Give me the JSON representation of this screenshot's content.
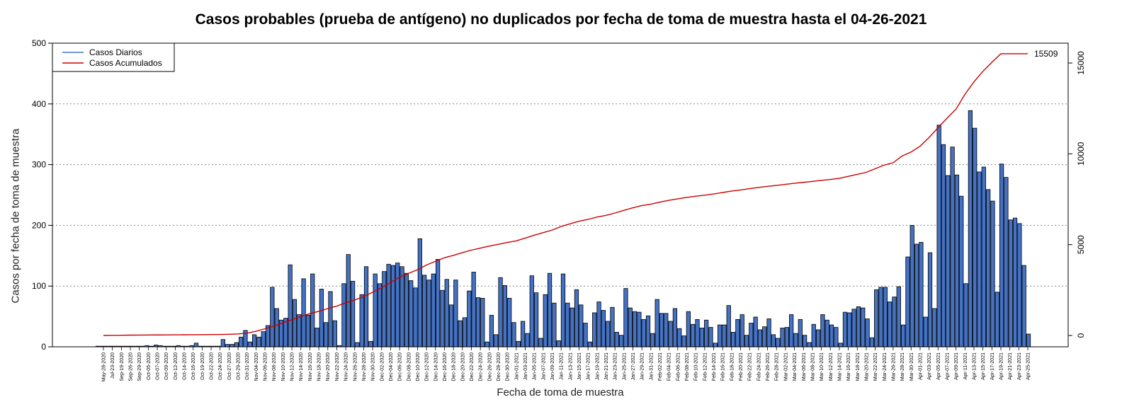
{
  "chart_data": {
    "type": "bar",
    "title": "Casos probables (prueba de antígeno) no duplicados por fecha de toma de muestra hasta el 04-26-2021",
    "xlabel": "Fecha de toma de muestra",
    "ylabel": "Casos por fecha de toma de muestra",
    "ylim": [
      0,
      500
    ],
    "y2lim": [
      0,
      16000
    ],
    "y_ticks": [
      0,
      100,
      200,
      300,
      400,
      500
    ],
    "y2_ticks": [
      0,
      5000,
      10000,
      15000
    ],
    "grid": "horizontal dotted",
    "legend_position": "top-left",
    "bar_color": "#4472c4",
    "line_color": "#cc0000",
    "cumulative_end_label": "15509",
    "x_tick_labels": [
      "May-28-2020",
      "Jul-23-2020",
      "Sep-19-2020",
      "Sep-26-2020",
      "Sep-29-2020",
      "Oct-05-2020",
      "Oct-07-2020",
      "Oct-09-2020",
      "Oct-12-2020",
      "Oct-14-2020",
      "Oct-16-2020",
      "Oct-19-2020",
      "Oct-22-2020",
      "Oct-24-2020",
      "Oct-27-2020",
      "Oct-29-2020",
      "Oct-31-2020",
      "Nov-04-2020",
      "Nov-06-2020",
      "Nov-08-2020",
      "Nov-10-2020",
      "Nov-12-2020",
      "Nov-14-2020",
      "Nov-16-2020",
      "Nov-18-2020",
      "Nov-20-2020",
      "Nov-22-2020",
      "Nov-24-2020",
      "Nov-26-2020",
      "Nov-28-2020",
      "Nov-30-2020",
      "Dec-02-2020",
      "Dec-04-2020",
      "Dec-06-2020",
      "Dec-08-2020",
      "Dec-10-2020",
      "Dec-12-2020",
      "Dec-14-2020",
      "Dec-16-2020",
      "Dec-18-2020",
      "Dec-20-2020",
      "Dec-22-2020",
      "Dec-24-2020",
      "Dec-26-2020",
      "Dec-28-2020",
      "Dec-30-2020",
      "Jan-01-2021",
      "Jan-03-2021",
      "Jan-05-2021",
      "Jan-07-2021",
      "Jan-09-2021",
      "Jan-11-2021",
      "Jan-13-2021",
      "Jan-15-2021",
      "Jan-17-2021",
      "Jan-19-2021",
      "Jan-21-2021",
      "Jan-23-2021",
      "Jan-25-2021",
      "Jan-27-2021",
      "Jan-29-2021",
      "Jan-31-2021",
      "Feb-02-2021",
      "Feb-04-2021",
      "Feb-06-2021",
      "Feb-08-2021",
      "Feb-10-2021",
      "Feb-12-2021",
      "Feb-14-2021",
      "Feb-16-2021",
      "Feb-18-2021",
      "Feb-20-2021",
      "Feb-22-2021",
      "Feb-24-2021",
      "Feb-26-2021",
      "Feb-28-2021",
      "Mar-02-2021",
      "Mar-04-2021",
      "Mar-06-2021",
      "Mar-08-2021",
      "Mar-10-2021",
      "Mar-12-2021",
      "Mar-14-2021",
      "Mar-16-2021",
      "Mar-18-2021",
      "Mar-20-2021",
      "Mar-22-2021",
      "Mar-24-2021",
      "Mar-26-2021",
      "Mar-28-2021",
      "Mar-30-2021",
      "Apr-01-2021",
      "Apr-03-2021",
      "Apr-05-2021",
      "Apr-07-2021",
      "Apr-09-2021",
      "Apr-11-2021",
      "Apr-13-2021",
      "Apr-15-2021",
      "Apr-17-2021",
      "Apr-19-2021",
      "Apr-21-2021",
      "Apr-23-2021",
      "Apr-25-2021"
    ],
    "series": [
      {
        "name": "Casos Diarios",
        "values": [
          1,
          1,
          1,
          1,
          1,
          1,
          1,
          1,
          1,
          1,
          1,
          2,
          1,
          3,
          2,
          1,
          1,
          1,
          2,
          1,
          1,
          2,
          6,
          1,
          1,
          1,
          1,
          1,
          12,
          4,
          4,
          7,
          16,
          27,
          8,
          20,
          16,
          25,
          35,
          98,
          63,
          44,
          47,
          135,
          78,
          53,
          112,
          52,
          120,
          31,
          95,
          40,
          91,
          43,
          2,
          104,
          152,
          108,
          7,
          86,
          132,
          9,
          120,
          104,
          124,
          136,
          134,
          138,
          132,
          121,
          109,
          97,
          178,
          118,
          110,
          120,
          144,
          93,
          111,
          69,
          110,
          43,
          48,
          92,
          123,
          81,
          80,
          8,
          52,
          20,
          114,
          101,
          80,
          40,
          9,
          42,
          22,
          117,
          89,
          14,
          86,
          121,
          72,
          10,
          120,
          72,
          64,
          94,
          69,
          39,
          8,
          56,
          74,
          60,
          42,
          65,
          24,
          19,
          96,
          64,
          58,
          57,
          45,
          51,
          22,
          78,
          55,
          55,
          42,
          63,
          30,
          18,
          58,
          37,
          45,
          31,
          44,
          32,
          6,
          36,
          36,
          68,
          24,
          45,
          53,
          19,
          39,
          49,
          28,
          33,
          46,
          20,
          14,
          31,
          32,
          53,
          22,
          45,
          19,
          7,
          37,
          28,
          53,
          44,
          36,
          32,
          6,
          57,
          56,
          62,
          66,
          64,
          46,
          15,
          94,
          98,
          98,
          74,
          82,
          99,
          36,
          148,
          200,
          169,
          172,
          49,
          155,
          63,
          365,
          333,
          282,
          329,
          283,
          248,
          104,
          389,
          360,
          288,
          296,
          259,
          240,
          90,
          301,
          279,
          209,
          212,
          203,
          134,
          21
        ]
      },
      {
        "name": "Casos Acumulados",
        "values_at_ticks": [
          0,
          8,
          14,
          19,
          22,
          26,
          29,
          32,
          36,
          39,
          42,
          47,
          50,
          56,
          66,
          86,
          130,
          230,
          370,
          520,
          700,
          870,
          1050,
          1200,
          1330,
          1480,
          1620,
          1800,
          1950,
          2140,
          2380,
          2630,
          2920,
          3210,
          3420,
          3620,
          3880,
          4080,
          4280,
          4410,
          4560,
          4700,
          4810,
          4920,
          5020,
          5120,
          5210,
          5360,
          5520,
          5660,
          5800,
          6000,
          6150,
          6290,
          6390,
          6520,
          6610,
          6740,
          6890,
          7030,
          7150,
          7230,
          7340,
          7440,
          7520,
          7600,
          7670,
          7720,
          7790,
          7870,
          7950,
          8010,
          8080,
          8150,
          8210,
          8260,
          8320,
          8380,
          8430,
          8480,
          8540,
          8590,
          8650,
          8760,
          8870,
          8980,
          9180,
          9380,
          9510,
          9880,
          10100,
          10420,
          10900,
          11440,
          11960,
          12460,
          13280,
          13960,
          14540,
          15040,
          15509,
          15509,
          15509,
          15509
        ]
      }
    ]
  }
}
